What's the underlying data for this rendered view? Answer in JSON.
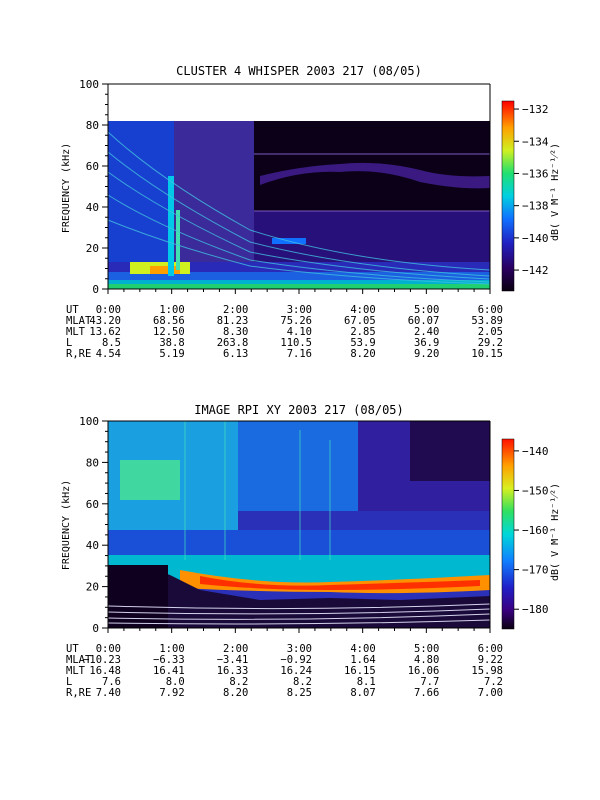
{
  "chart_data": [
    {
      "type": "heatmap",
      "title": "CLUSTER 4 WHISPER 2003 217 (08/05)",
      "ylabel": "FREQUENCY (kHz)",
      "ylim": [
        0,
        100
      ],
      "yticks": [
        "0",
        "20",
        "40",
        "60",
        "80",
        "100"
      ],
      "xlim_hours": [
        0,
        6
      ],
      "colorbar": {
        "label": "dB( V M⁻¹ Hz⁻¹⁄²)",
        "range": [
          -143.3,
          -131.5
        ],
        "ticks": [
          "-132",
          "-134",
          "-136",
          "-138",
          "-140",
          "-142"
        ]
      },
      "table": {
        "row_labels": [
          "UT",
          "MLAT",
          "MLT",
          "L",
          "R,RE"
        ],
        "columns": [
          [
            "0:00",
            "43.20",
            "13.62",
            "8.5",
            "4.54"
          ],
          [
            "1:00",
            "68.56",
            "12.50",
            "38.8",
            "5.19"
          ],
          [
            "2:00",
            "81.23",
            "8.30",
            "263.8",
            "6.13"
          ],
          [
            "3:00",
            "75.26",
            "4.10",
            "110.5",
            "7.16"
          ],
          [
            "4:00",
            "67.05",
            "2.85",
            "53.9",
            "8.20"
          ],
          [
            "5:00",
            "60.07",
            "2.40",
            "36.9",
            "9.20"
          ],
          [
            "6:00",
            "53.89",
            "2.05",
            "29.2",
            "10.15"
          ]
        ]
      }
    },
    {
      "type": "heatmap",
      "title": "IMAGE RPI XY 2003 217 (08/05)",
      "ylabel": "FREQUENCY (kHz)",
      "ylim": [
        0,
        100
      ],
      "yticks": [
        "0",
        "20",
        "40",
        "60",
        "80",
        "100"
      ],
      "xlim_hours": [
        0,
        6
      ],
      "colorbar": {
        "label": "dB( V M⁻¹ Hz⁻¹⁄²)",
        "range": [
          -185,
          -137
        ],
        "ticks": [
          "-140",
          "-150",
          "-160",
          "-170",
          "-180"
        ]
      },
      "table": {
        "row_labels": [
          "UT",
          "MLAT",
          "MLT",
          "L",
          "R,RE"
        ],
        "columns": [
          [
            "0:00",
            "-10.23",
            "16.48",
            "7.6",
            "7.40"
          ],
          [
            "1:00",
            "-6.33",
            "16.41",
            "8.0",
            "7.92"
          ],
          [
            "2:00",
            "-3.41",
            "16.33",
            "8.2",
            "8.20"
          ],
          [
            "3:00",
            "-0.92",
            "16.24",
            "8.2",
            "8.25"
          ],
          [
            "4:00",
            "1.64",
            "16.15",
            "8.1",
            "8.07"
          ],
          [
            "5:00",
            "4.80",
            "16.06",
            "7.7",
            "7.66"
          ],
          [
            "6:00",
            "9.22",
            "15.98",
            "7.2",
            "7.00"
          ]
        ]
      }
    }
  ]
}
